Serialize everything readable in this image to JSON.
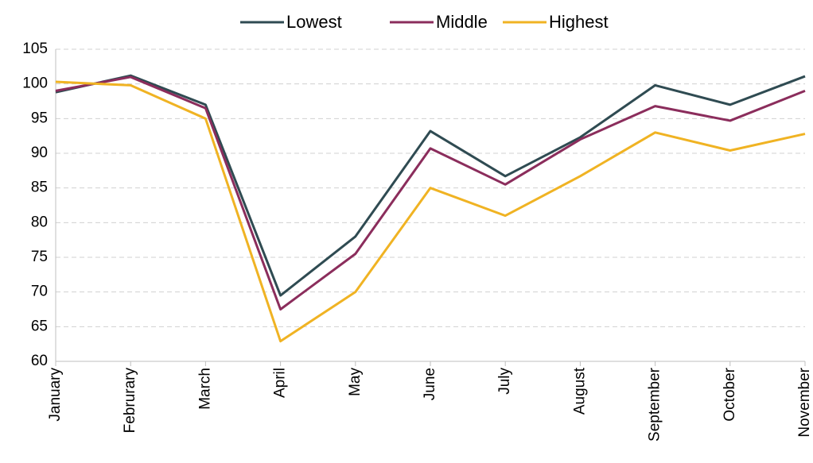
{
  "chart_data": {
    "type": "line",
    "categories": [
      "January",
      "Februrary",
      "March",
      "April",
      "May",
      "June",
      "July",
      "August",
      "September",
      "October",
      "November"
    ],
    "series": [
      {
        "name": "Lowest",
        "color": "#2f4b52",
        "values": [
          98.8,
          101.2,
          97,
          69.5,
          78,
          93.2,
          86.7,
          92.3,
          99.8,
          97,
          101.1
        ]
      },
      {
        "name": "Middle",
        "color": "#8b2d5c",
        "values": [
          99,
          101,
          96.5,
          67.5,
          75.5,
          90.7,
          85.5,
          92,
          96.8,
          94.7,
          99
        ]
      },
      {
        "name": "Highest",
        "color": "#f0b323",
        "values": [
          100.3,
          99.8,
          95,
          62.9,
          70,
          85,
          81,
          86.7,
          93,
          90.4,
          92.8
        ]
      }
    ],
    "ylim": [
      60,
      105
    ],
    "yticks": [
      60,
      65,
      70,
      75,
      80,
      85,
      90,
      95,
      100,
      105
    ],
    "grid": true,
    "legend": "top"
  }
}
